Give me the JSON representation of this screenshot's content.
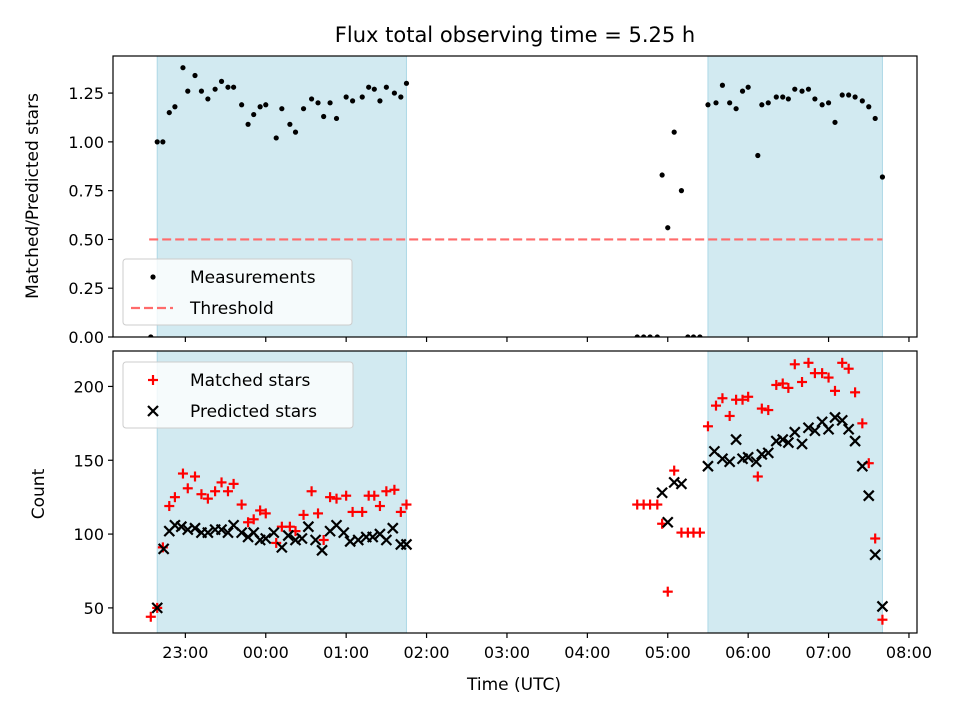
{
  "title": "Flux total observing time = 5.25 h",
  "colors": {
    "band": "#add8e6",
    "threshold": "#ff6b6b",
    "measurement": "#000000",
    "matched": "#ff0000",
    "predicted": "#000000"
  },
  "x_axis": {
    "label": "Time (UTC)",
    "range_hours": [
      -1.9,
      8.1
    ],
    "ticks": [
      {
        "value": -1,
        "label": "23:00"
      },
      {
        "value": 0,
        "label": "00:00"
      },
      {
        "value": 1,
        "label": "01:00"
      },
      {
        "value": 2,
        "label": "02:00"
      },
      {
        "value": 3,
        "label": "03:00"
      },
      {
        "value": 4,
        "label": "04:00"
      },
      {
        "value": 5,
        "label": "05:00"
      },
      {
        "value": 6,
        "label": "06:00"
      },
      {
        "value": 7,
        "label": "07:00"
      },
      {
        "value": 8,
        "label": "08:00"
      }
    ]
  },
  "chart_data": [
    {
      "type": "scatter",
      "name": "ratio-panel",
      "title": "Flux total observing time = 5.25 h",
      "ylabel": "Matched/Predicted stars",
      "xlabel": "",
      "ylim": [
        0,
        1.44
      ],
      "yticks": [
        {
          "value": 0,
          "label": "0.00"
        },
        {
          "value": 0.25,
          "label": "0.25"
        },
        {
          "value": 0.5,
          "label": "0.50"
        },
        {
          "value": 0.75,
          "label": "0.75"
        },
        {
          "value": 1.0,
          "label": "1.00"
        },
        {
          "value": 1.25,
          "label": "1.25"
        }
      ],
      "shaded_intervals": [
        [
          -1.35,
          1.75
        ],
        [
          5.5,
          7.67
        ]
      ],
      "threshold": {
        "name": "Threshold",
        "value": 0.5,
        "x_range": [
          -1.45,
          7.67
        ]
      },
      "legend": {
        "position": "lower-left",
        "entries": [
          "Measurements",
          "Threshold"
        ]
      },
      "series": [
        {
          "name": "Measurements",
          "points": [
            [
              -1.43,
              0.0
            ],
            [
              -1.35,
              1.0
            ],
            [
              -1.28,
              1.0
            ],
            [
              -1.2,
              1.15
            ],
            [
              -1.13,
              1.18
            ],
            [
              -1.03,
              1.38
            ],
            [
              -0.97,
              1.26
            ],
            [
              -0.88,
              1.34
            ],
            [
              -0.8,
              1.26
            ],
            [
              -0.72,
              1.22
            ],
            [
              -0.63,
              1.27
            ],
            [
              -0.55,
              1.31
            ],
            [
              -0.47,
              1.28
            ],
            [
              -0.4,
              1.28
            ],
            [
              -0.3,
              1.19
            ],
            [
              -0.22,
              1.09
            ],
            [
              -0.15,
              1.14
            ],
            [
              -0.07,
              1.18
            ],
            [
              0.0,
              1.19
            ],
            [
              0.13,
              1.02
            ],
            [
              0.2,
              1.17
            ],
            [
              0.3,
              1.09
            ],
            [
              0.37,
              1.05
            ],
            [
              0.47,
              1.17
            ],
            [
              0.57,
              1.22
            ],
            [
              0.65,
              1.2
            ],
            [
              0.72,
              1.13
            ],
            [
              0.8,
              1.2
            ],
            [
              0.88,
              1.12
            ],
            [
              1.0,
              1.23
            ],
            [
              1.08,
              1.21
            ],
            [
              1.2,
              1.23
            ],
            [
              1.28,
              1.28
            ],
            [
              1.35,
              1.27
            ],
            [
              1.42,
              1.21
            ],
            [
              1.5,
              1.28
            ],
            [
              1.6,
              1.25
            ],
            [
              1.68,
              1.23
            ],
            [
              1.75,
              1.3
            ],
            [
              4.62,
              0.0
            ],
            [
              4.7,
              0.0
            ],
            [
              4.78,
              0.0
            ],
            [
              4.87,
              0.0
            ],
            [
              4.93,
              0.83
            ],
            [
              5.0,
              0.56
            ],
            [
              5.08,
              1.05
            ],
            [
              5.17,
              0.75
            ],
            [
              5.25,
              0.0
            ],
            [
              5.32,
              0.0
            ],
            [
              5.4,
              0.0
            ],
            [
              5.5,
              1.19
            ],
            [
              5.6,
              1.2
            ],
            [
              5.68,
              1.29
            ],
            [
              5.77,
              1.2
            ],
            [
              5.85,
              1.17
            ],
            [
              5.93,
              1.26
            ],
            [
              6.0,
              1.28
            ],
            [
              6.12,
              0.93
            ],
            [
              6.17,
              1.19
            ],
            [
              6.25,
              1.2
            ],
            [
              6.35,
              1.23
            ],
            [
              6.43,
              1.23
            ],
            [
              6.5,
              1.22
            ],
            [
              6.58,
              1.27
            ],
            [
              6.67,
              1.26
            ],
            [
              6.75,
              1.27
            ],
            [
              6.83,
              1.22
            ],
            [
              6.92,
              1.19
            ],
            [
              7.0,
              1.2
            ],
            [
              7.08,
              1.1
            ],
            [
              7.17,
              1.24
            ],
            [
              7.25,
              1.24
            ],
            [
              7.33,
              1.23
            ],
            [
              7.42,
              1.21
            ],
            [
              7.5,
              1.18
            ],
            [
              7.58,
              1.12
            ],
            [
              7.67,
              0.82
            ]
          ]
        }
      ]
    },
    {
      "type": "scatter",
      "name": "count-panel",
      "title": "",
      "ylabel": "Count",
      "xlabel": "Time (UTC)",
      "ylim": [
        33,
        224
      ],
      "yticks": [
        {
          "value": 50,
          "label": "50"
        },
        {
          "value": 100,
          "label": "100"
        },
        {
          "value": 150,
          "label": "150"
        },
        {
          "value": 200,
          "label": "200"
        }
      ],
      "shaded_intervals": [
        [
          -1.35,
          1.75
        ],
        [
          5.5,
          7.67
        ]
      ],
      "legend": {
        "position": "top-left",
        "entries": [
          "Matched stars",
          "Predicted stars"
        ]
      },
      "series": [
        {
          "name": "Matched stars",
          "marker": "plus",
          "points": [
            [
              -1.43,
              44
            ],
            [
              -1.35,
              50
            ],
            [
              -1.28,
              91
            ],
            [
              -1.2,
              119
            ],
            [
              -1.13,
              125
            ],
            [
              -1.03,
              141
            ],
            [
              -0.97,
              131
            ],
            [
              -0.88,
              139
            ],
            [
              -0.8,
              127
            ],
            [
              -0.72,
              124
            ],
            [
              -0.63,
              129
            ],
            [
              -0.55,
              135
            ],
            [
              -0.47,
              129
            ],
            [
              -0.4,
              134
            ],
            [
              -0.3,
              120
            ],
            [
              -0.22,
              108
            ],
            [
              -0.15,
              110
            ],
            [
              -0.07,
              116
            ],
            [
              0.0,
              114
            ],
            [
              0.13,
              94
            ],
            [
              0.2,
              105
            ],
            [
              0.3,
              105
            ],
            [
              0.37,
              102
            ],
            [
              0.47,
              113
            ],
            [
              0.57,
              129
            ],
            [
              0.65,
              114
            ],
            [
              0.72,
              96
            ],
            [
              0.8,
              125
            ],
            [
              0.88,
              124
            ],
            [
              1.0,
              126
            ],
            [
              1.08,
              115
            ],
            [
              1.2,
              115
            ],
            [
              1.28,
              126
            ],
            [
              1.35,
              126
            ],
            [
              1.42,
              119
            ],
            [
              1.5,
              129
            ],
            [
              1.6,
              130
            ],
            [
              1.68,
              115
            ],
            [
              1.75,
              120
            ],
            [
              4.62,
              120
            ],
            [
              4.7,
              120
            ],
            [
              4.78,
              120
            ],
            [
              4.87,
              120
            ],
            [
              4.93,
              107
            ],
            [
              5.0,
              61
            ],
            [
              5.08,
              143
            ],
            [
              5.17,
              101
            ],
            [
              5.25,
              101
            ],
            [
              5.32,
              101
            ],
            [
              5.4,
              101
            ],
            [
              5.5,
              173
            ],
            [
              5.6,
              187
            ],
            [
              5.68,
              192
            ],
            [
              5.77,
              180
            ],
            [
              5.85,
              191
            ],
            [
              5.93,
              191
            ],
            [
              6.0,
              193
            ],
            [
              6.12,
              139
            ],
            [
              6.17,
              185
            ],
            [
              6.25,
              184
            ],
            [
              6.35,
              201
            ],
            [
              6.43,
              202
            ],
            [
              6.5,
              199
            ],
            [
              6.58,
              215
            ],
            [
              6.67,
              203
            ],
            [
              6.75,
              216
            ],
            [
              6.83,
              209
            ],
            [
              6.92,
              209
            ],
            [
              7.0,
              206
            ],
            [
              7.08,
              197
            ],
            [
              7.17,
              216
            ],
            [
              7.25,
              212
            ],
            [
              7.33,
              196
            ],
            [
              7.42,
              175
            ],
            [
              7.5,
              148
            ],
            [
              7.58,
              97
            ],
            [
              7.67,
              42
            ]
          ]
        },
        {
          "name": "Predicted stars",
          "marker": "x",
          "points": [
            [
              -1.35,
              50
            ],
            [
              -1.27,
              90
            ],
            [
              -1.2,
              102
            ],
            [
              -1.13,
              106
            ],
            [
              -1.05,
              105
            ],
            [
              -0.97,
              103
            ],
            [
              -0.88,
              104
            ],
            [
              -0.8,
              101
            ],
            [
              -0.72,
              101
            ],
            [
              -0.63,
              103
            ],
            [
              -0.55,
              103
            ],
            [
              -0.47,
              101
            ],
            [
              -0.4,
              106
            ],
            [
              -0.3,
              101
            ],
            [
              -0.22,
              98
            ],
            [
              -0.15,
              101
            ],
            [
              -0.07,
              96
            ],
            [
              0.0,
              97
            ],
            [
              0.1,
              101
            ],
            [
              0.2,
              91
            ],
            [
              0.28,
              99
            ],
            [
              0.37,
              96
            ],
            [
              0.45,
              97
            ],
            [
              0.53,
              105
            ],
            [
              0.62,
              96
            ],
            [
              0.7,
              89
            ],
            [
              0.8,
              102
            ],
            [
              0.88,
              106
            ],
            [
              0.97,
              101
            ],
            [
              1.05,
              95
            ],
            [
              1.15,
              96
            ],
            [
              1.25,
              98
            ],
            [
              1.33,
              98
            ],
            [
              1.42,
              100
            ],
            [
              1.5,
              96
            ],
            [
              1.58,
              104
            ],
            [
              1.68,
              93
            ],
            [
              1.75,
              93
            ],
            [
              4.93,
              128
            ],
            [
              5.0,
              108
            ],
            [
              5.08,
              135
            ],
            [
              5.17,
              134
            ],
            [
              5.5,
              146
            ],
            [
              5.58,
              156
            ],
            [
              5.68,
              151
            ],
            [
              5.77,
              149
            ],
            [
              5.85,
              164
            ],
            [
              5.93,
              151
            ],
            [
              6.0,
              152
            ],
            [
              6.1,
              149
            ],
            [
              6.17,
              154
            ],
            [
              6.25,
              155
            ],
            [
              6.35,
              163
            ],
            [
              6.43,
              164
            ],
            [
              6.5,
              162
            ],
            [
              6.58,
              169
            ],
            [
              6.67,
              161
            ],
            [
              6.75,
              172
            ],
            [
              6.83,
              170
            ],
            [
              6.92,
              176
            ],
            [
              7.0,
              171
            ],
            [
              7.08,
              179
            ],
            [
              7.17,
              177
            ],
            [
              7.25,
              171
            ],
            [
              7.33,
              163
            ],
            [
              7.42,
              146
            ],
            [
              7.5,
              126
            ],
            [
              7.58,
              86
            ],
            [
              7.67,
              51
            ]
          ]
        }
      ]
    }
  ]
}
